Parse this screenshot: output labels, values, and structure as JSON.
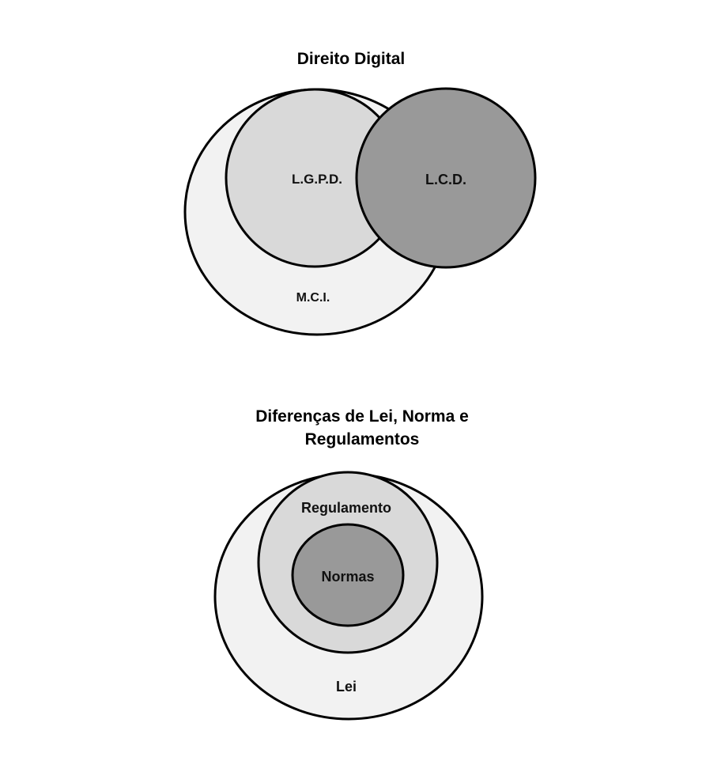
{
  "colors": {
    "background": "#ffffff",
    "outline": "#000000",
    "light_fill": "#f2f2f2",
    "mid_fill": "#d9d9d9",
    "dark_fill": "#999999"
  },
  "diagram_top": {
    "title": "Direito Digital",
    "sets": {
      "mci": "M.C.I.",
      "lgpd": "L.G.P.D.",
      "lcd": "L.C.D."
    }
  },
  "diagram_bottom": {
    "title_line1": "Diferenças de Lei, Norma e",
    "title_line2": "Regulamentos",
    "sets": {
      "lei": "Lei",
      "regulamento": "Regulamento",
      "normas": "Normas"
    }
  }
}
